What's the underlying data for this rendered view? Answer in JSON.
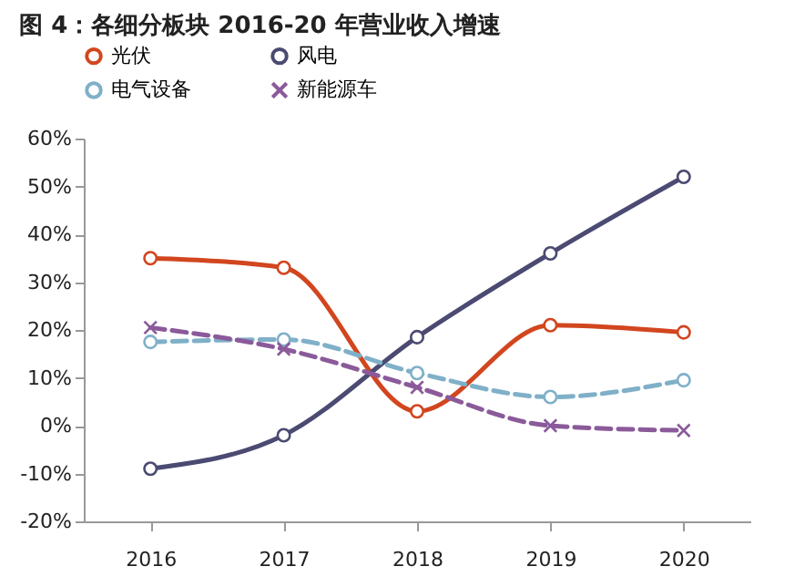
{
  "chart_data": {
    "type": "line",
    "title": "图 4：各细分板块 2016-20 年营业收入增速",
    "categories": [
      "2016",
      "2017",
      "2018",
      "2019",
      "2020"
    ],
    "series": [
      {
        "name": "光伏",
        "color": "#d2461f",
        "values": [
          35,
          33,
          3,
          21,
          19.5
        ],
        "marker": "circle",
        "line_style": "solid"
      },
      {
        "name": "风电",
        "color": "#4b4a72",
        "values": [
          -9,
          -2,
          18.5,
          36,
          52
        ],
        "marker": "circle",
        "line_style": "solid"
      },
      {
        "name": "电气设备",
        "color": "#7fb0c8",
        "values": [
          17.5,
          18,
          11,
          6,
          9.5
        ],
        "marker": "circle",
        "line_style": "dashed"
      },
      {
        "name": "新能源车",
        "color": "#8b5a9a",
        "values": [
          20.5,
          16,
          8,
          0,
          -1
        ],
        "marker": "cross",
        "line_style": "dashed"
      }
    ],
    "ylim": [
      -20,
      60
    ],
    "yticks": [
      {
        "value": -20,
        "label": "-20%"
      },
      {
        "value": -10,
        "label": "-10%"
      },
      {
        "value": 0,
        "label": "0%"
      },
      {
        "value": 10,
        "label": "10%"
      },
      {
        "value": 20,
        "label": "20%"
      },
      {
        "value": 30,
        "label": "30%"
      },
      {
        "value": 40,
        "label": "40%"
      },
      {
        "value": 50,
        "label": "50%"
      },
      {
        "value": 60,
        "label": "60%"
      }
    ],
    "grid": false,
    "legend": "top"
  }
}
